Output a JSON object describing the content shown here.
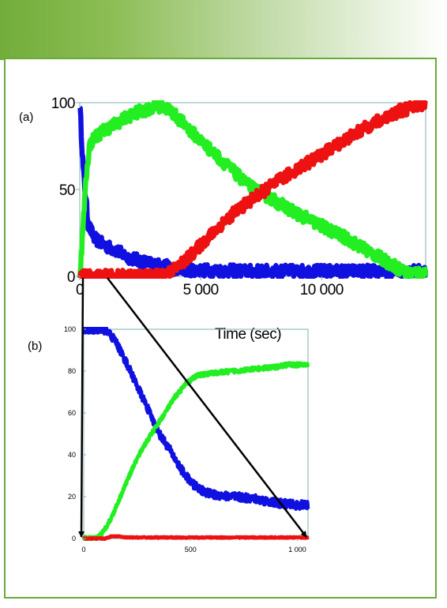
{
  "colors": {
    "banner_start": "#72ad3a",
    "frame": "#6aaa3a",
    "axis": "#7fb0b3",
    "arrow": "#000000"
  },
  "chart_data": [
    {
      "panel_label": "(a)",
      "type": "line",
      "xlabel": "Time (sec)",
      "ylabel": "",
      "xlim": [
        0,
        14300
      ],
      "ylim": [
        0,
        100
      ],
      "xticks": [
        0,
        5000,
        10000
      ],
      "xtick_labels": [
        "0",
        "5 000",
        "10 000"
      ],
      "yticks": [
        0,
        50,
        100
      ],
      "ytick_labels": [
        "0",
        "50",
        "100"
      ],
      "grid": false,
      "series": [
        {
          "color": "#1010e0",
          "noise": 3.5,
          "x": [
            0,
            150,
            350,
            600,
            1000,
            1500,
            2000,
            2500,
            3000,
            3500,
            4000,
            5000,
            7000,
            9000,
            11000,
            13000,
            14300
          ],
          "y": [
            100,
            60,
            30,
            22,
            18,
            15,
            11,
            9,
            7,
            6,
            4,
            3.5,
            3,
            3,
            3,
            3,
            3
          ]
        },
        {
          "color": "#22ee22",
          "noise": 3.5,
          "x": [
            0,
            100,
            250,
            400,
            600,
            1000,
            1500,
            2000,
            2500,
            3000,
            3300,
            3700,
            4000,
            4500,
            5000,
            6000,
            7000,
            8000,
            9000,
            10000,
            11000,
            12000,
            13000,
            13500,
            14300
          ],
          "y": [
            0,
            20,
            55,
            75,
            80,
            84,
            88,
            92,
            95,
            97,
            98,
            96,
            92,
            85,
            78,
            65,
            52,
            44,
            36,
            29,
            22,
            14,
            6,
            2,
            2
          ]
        },
        {
          "color": "#ee1111",
          "noise": 3.5,
          "x": [
            0,
            1000,
            2000,
            3000,
            3500,
            4000,
            4500,
            5000,
            5500,
            6000,
            6500,
            7000,
            8000,
            9000,
            10000,
            11000,
            12000,
            13000,
            14300
          ],
          "y": [
            0,
            0,
            0,
            0,
            1,
            5,
            11,
            18,
            25,
            32,
            38,
            43,
            53,
            62,
            70,
            79,
            87,
            94,
            100
          ]
        }
      ]
    },
    {
      "panel_label": "(b)",
      "type": "line",
      "xlabel": "",
      "ylabel": "",
      "xlim": [
        0,
        1050
      ],
      "ylim": [
        0,
        100
      ],
      "xticks": [
        0,
        500,
        1000
      ],
      "xtick_labels": [
        "0",
        "500",
        "1 000"
      ],
      "yticks": [
        0,
        20,
        40,
        60,
        80,
        100
      ],
      "ytick_labels": [
        "0",
        "20",
        "40",
        "60",
        "80",
        "100"
      ],
      "grid": false,
      "series": [
        {
          "color": "#1010e0",
          "noise": 2.0,
          "x": [
            0,
            60,
            90,
            120,
            150,
            200,
            250,
            300,
            330,
            360,
            400,
            450,
            500,
            550,
            600,
            700,
            800,
            900,
            1000,
            1050
          ],
          "y": [
            100,
            100,
            100,
            98,
            94,
            84,
            73,
            62,
            55,
            49,
            43,
            34,
            27,
            23,
            21,
            20,
            19,
            17,
            16,
            16
          ]
        },
        {
          "color": "#22ee22",
          "noise": 1.0,
          "x": [
            0,
            60,
            90,
            130,
            180,
            230,
            280,
            330,
            380,
            430,
            480,
            530,
            600,
            700,
            800,
            900,
            950,
            1000,
            1050
          ],
          "y": [
            0,
            0,
            3,
            10,
            22,
            34,
            44,
            52,
            60,
            68,
            74,
            78,
            79,
            80,
            81,
            82,
            83,
            83,
            83
          ]
        },
        {
          "color": "#ee1111",
          "noise": 0.3,
          "x": [
            0,
            100,
            130,
            160,
            200,
            300,
            500,
            800,
            1050
          ],
          "y": [
            0,
            0,
            1,
            1,
            0.5,
            0.5,
            0.5,
            0.5,
            0.5
          ]
        }
      ]
    }
  ]
}
